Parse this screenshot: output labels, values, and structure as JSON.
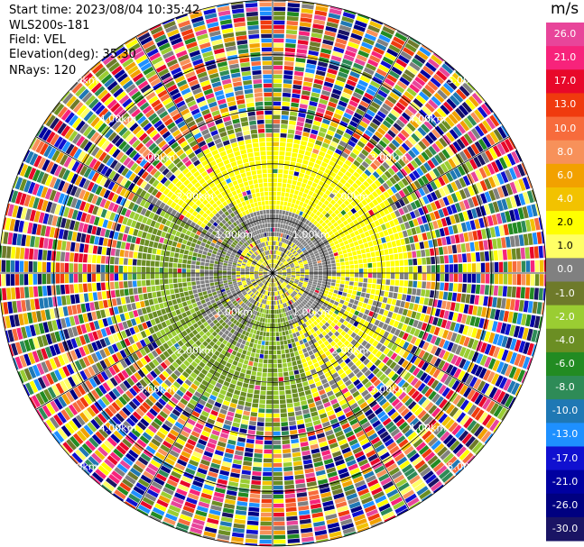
{
  "header": {
    "start_time": "Start time: 2023/08/04 10:35:42",
    "instrument": "WLS200s-181",
    "field": "Field: VEL",
    "elevation": "Elevation(deg): 35.30",
    "nrays": "NRays: 120"
  },
  "colorbar": {
    "unit": "m/s",
    "ticks": [
      "26.0",
      "21.0",
      "17.0",
      "13.0",
      "10.0",
      "8.0",
      "6.0",
      "4.0",
      "2.0",
      "1.0",
      "0.0",
      "-1.0",
      "-2.0",
      "-4.0",
      "-6.0",
      "-8.0",
      "-10.0",
      "-13.0",
      "-17.0",
      "-21.0",
      "-26.0",
      "-30.0"
    ],
    "colors": [
      "#e8459a",
      "#f7237b",
      "#e8082a",
      "#f03a0e",
      "#f76b3c",
      "#f7915a",
      "#f2a100",
      "#f2c200",
      "#ffff00",
      "#ffff66",
      "#808080",
      "#6e7a2a",
      "#9acd32",
      "#6b8e23",
      "#228b22",
      "#2e8b57",
      "#1f78b4",
      "#1e90ff",
      "#1010d0",
      "#0000a0",
      "#000080",
      "#1a1464"
    ]
  },
  "chart_data": {
    "type": "heatmap",
    "title": "",
    "field": "VEL",
    "units": "m/s",
    "n_rays": 120,
    "elevation_deg": 35.3,
    "range_ring_labels": [
      "1.00km",
      "2.00km",
      "3.00km",
      "4.00km",
      "5.00km"
    ],
    "range_rings_km": [
      1.0,
      2.0,
      3.0,
      4.0,
      5.0
    ],
    "max_range_km": 5.0,
    "color_scale_min": -30.0,
    "color_scale_max": 26.0,
    "pattern": {
      "near_field_colors": [
        "#ffff00",
        "#9acd32",
        "#6b8e23",
        "#808080"
      ],
      "far_field": "noise"
    }
  }
}
